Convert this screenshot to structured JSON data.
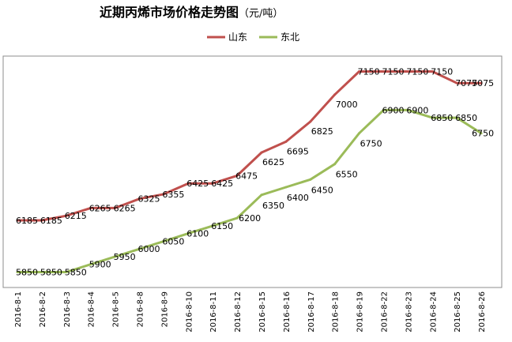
{
  "chart_data": {
    "type": "line",
    "title": "近期丙烯市场价格走势图",
    "title_unit": "（元/吨）",
    "categories": [
      "2016-8-1",
      "2016-8-2",
      "2016-8-3",
      "2016-8-4",
      "2016-8-5",
      "2016-8-8",
      "2016-8-9",
      "2016-8-10",
      "2016-8-11",
      "2016-8-12",
      "2016-8-15",
      "2016-8-16",
      "2016-8-17",
      "2016-8-18",
      "2016-8-19",
      "2016-8-22",
      "2016-8-23",
      "2016-8-24",
      "2016-8-25",
      "2016-8-26"
    ],
    "series": [
      {
        "name": "山东",
        "color": "#c0504d",
        "values": [
          6185,
          6185,
          6215,
          6265,
          6265,
          6325,
          6355,
          6425,
          6425,
          6475,
          6625,
          6695,
          6825,
          7000,
          7150,
          7150,
          7150,
          7150,
          7075,
          7075
        ]
      },
      {
        "name": "东北",
        "color": "#9bbb59",
        "values": [
          5850,
          5850,
          5850,
          5900,
          5950,
          6000,
          6050,
          6100,
          6150,
          6200,
          6350,
          6400,
          6450,
          6550,
          6750,
          6900,
          6900,
          6850,
          6850,
          6750
        ]
      }
    ],
    "ylim": [
      5750,
      7250
    ],
    "legend_position": "top-center",
    "grid": false
  }
}
